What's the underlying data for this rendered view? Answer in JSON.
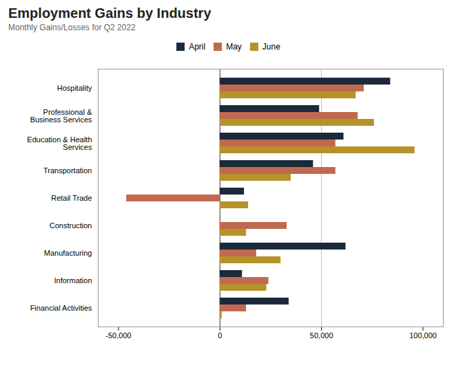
{
  "chart_data": {
    "type": "bar",
    "orientation": "horizontal",
    "title": "Employment Gains by Industry",
    "subtitle": "Monthly Gains/Losses for Q2 2022",
    "categories": [
      "Hospitality",
      "Professional &\nBusiness Services",
      "Education & Health\nServices",
      "Transportation",
      "Retail Trade",
      "Construction",
      "Manufacturing",
      "Information",
      "Financial Activities"
    ],
    "series": [
      {
        "name": "April",
        "color": "#1b2a3b",
        "values": [
          84000,
          49000,
          61000,
          46000,
          12000,
          0,
          62000,
          11000,
          34000
        ]
      },
      {
        "name": "May",
        "color": "#c1694f",
        "values": [
          71000,
          68000,
          57000,
          57000,
          -46000,
          33000,
          18000,
          24000,
          13000
        ]
      },
      {
        "name": "June",
        "color": "#b5932a",
        "values": [
          67000,
          76000,
          96000,
          35000,
          14000,
          13000,
          30000,
          23000,
          1000
        ]
      }
    ],
    "xlim": [
      -60000,
      110000
    ],
    "xticks": [
      {
        "value": -50000,
        "label": "-50,000"
      },
      0,
      {
        "value": 50000,
        "label": "50,000"
      },
      {
        "value": 100000,
        "label": "100,000"
      }
    ],
    "grid": false,
    "legend": "top",
    "vlines": [
      0,
      50000
    ]
  }
}
